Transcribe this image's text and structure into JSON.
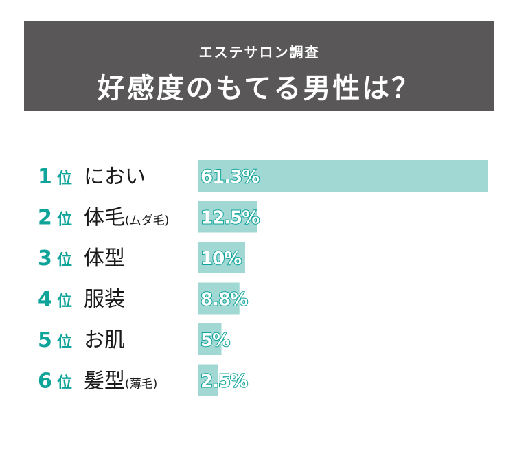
{
  "header": {
    "subtitle": "エステサロン調査",
    "title": "好感度のもてる男性は？"
  },
  "colors": {
    "header_bg": "#595757",
    "accent": "#0fa49a",
    "bar": "#a2d8d3",
    "value_fill": "#ffffff",
    "value_stroke": "#0fa49a",
    "label": "#1a1a1a"
  },
  "chart_data": {
    "type": "bar",
    "orientation": "horizontal",
    "ranks": [
      "1",
      "2",
      "3",
      "4",
      "5",
      "6"
    ],
    "rank_suffix": "位",
    "categories": [
      "におい",
      "体毛",
      "体型",
      "服装",
      "お肌",
      "髪型"
    ],
    "category_notes": [
      "",
      "(ムダ毛)",
      "",
      "",
      "",
      "(薄毛)"
    ],
    "values": [
      61.3,
      12.5,
      10,
      8.8,
      5,
      2.5
    ],
    "value_labels": [
      "61.3%",
      "12.5%",
      "10%",
      "8.8%",
      "5%",
      "2.5%"
    ],
    "unit": "%",
    "xlim": [
      0,
      61.3
    ],
    "grid": false,
    "legend": "none"
  }
}
